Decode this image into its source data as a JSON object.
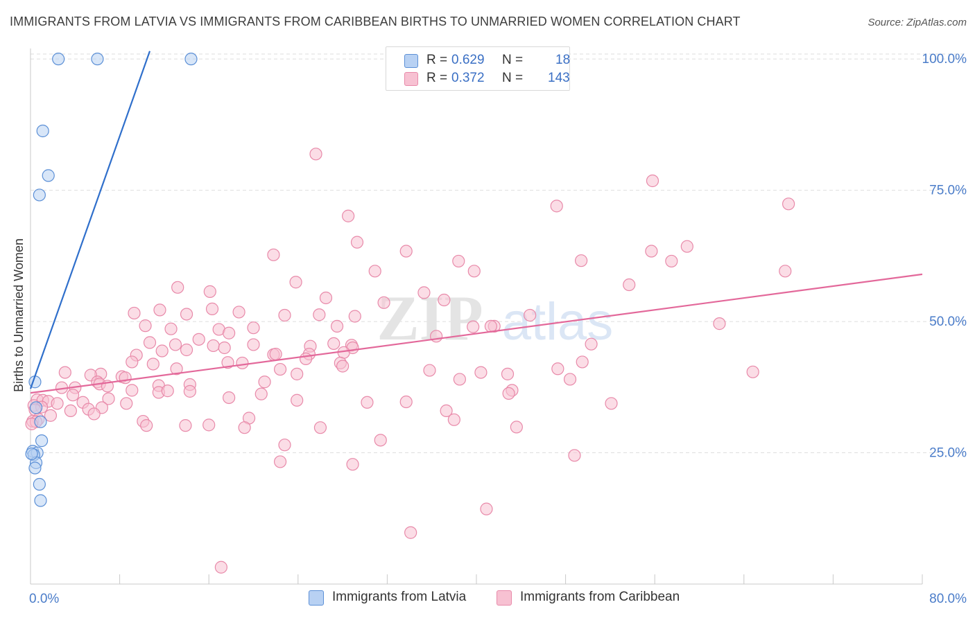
{
  "title": "IMMIGRANTS FROM LATVIA VS IMMIGRANTS FROM CARIBBEAN BIRTHS TO UNMARRIED WOMEN CORRELATION CHART",
  "source": "Source: ZipAtlas.com",
  "watermark": {
    "zip": "ZIP",
    "atlas": "atlas"
  },
  "legend_stats": [
    {
      "r_label": "R =",
      "r_value": "0.629",
      "n_label": "N =",
      "n_value": "18"
    },
    {
      "r_label": "R =",
      "r_value": "0.372",
      "n_label": "N =",
      "n_value": "143"
    }
  ],
  "colors": {
    "latvia_fill": "#b8d1f3",
    "latvia_stroke": "#5b8fd6",
    "latvia_line": "#2f6fcb",
    "caribbean_fill": "#f7c1d2",
    "caribbean_stroke": "#e889a9",
    "caribbean_line": "#e3689a",
    "tick_label": "#4a7cc9",
    "grid": "#dedede"
  },
  "chart_data": {
    "type": "scatter",
    "title": "IMMIGRANTS FROM LATVIA VS IMMIGRANTS FROM CARIBBEAN BIRTHS TO UNMARRIED WOMEN CORRELATION CHART",
    "xlabel": "",
    "ylabel": "Births to Unmarried Women",
    "xlim": [
      0,
      80
    ],
    "ylim": [
      0,
      102
    ],
    "x_tick_labels": [
      {
        "value": 0,
        "label": "0.0%"
      },
      {
        "value": 80,
        "label": "80.0%"
      }
    ],
    "x_minor_ticks": [
      0,
      8,
      16,
      24,
      32,
      40,
      48,
      56,
      64,
      72,
      80
    ],
    "y_tick_labels": [
      {
        "value": 25,
        "label": "25.0%"
      },
      {
        "value": 50,
        "label": "50.0%"
      },
      {
        "value": 75,
        "label": "75.0%"
      },
      {
        "value": 100,
        "label": "100.0%"
      }
    ],
    "series": [
      {
        "name": "Immigrants from Latvia",
        "r": 0.629,
        "n": 18,
        "trend": {
          "x0": 0,
          "y0": 37.2,
          "x1": 10.7,
          "y1": 101.5
        },
        "points": [
          [
            2.5,
            100
          ],
          [
            6.0,
            100
          ],
          [
            14.4,
            100
          ],
          [
            1.1,
            86.3
          ],
          [
            1.6,
            77.8
          ],
          [
            0.8,
            74.1
          ],
          [
            0.4,
            38.5
          ],
          [
            0.5,
            33.6
          ],
          [
            0.9,
            30.9
          ],
          [
            1.0,
            27.3
          ],
          [
            0.2,
            25.3
          ],
          [
            0.6,
            25.0
          ],
          [
            0.3,
            24.6
          ],
          [
            0.5,
            23.1
          ],
          [
            0.4,
            22.1
          ],
          [
            0.8,
            19.0
          ],
          [
            0.9,
            15.9
          ],
          [
            0.1,
            24.8
          ]
        ]
      },
      {
        "name": "Immigrants from Caribbean",
        "r": 0.372,
        "n": 143,
        "trend": {
          "x0": 0,
          "y0": 36.4,
          "x1": 80,
          "y1": 59.0
        },
        "points": [
          [
            25.6,
            81.9
          ],
          [
            55.8,
            76.8
          ],
          [
            68.0,
            72.4
          ],
          [
            47.2,
            72.0
          ],
          [
            28.5,
            70.1
          ],
          [
            29.3,
            65.1
          ],
          [
            58.9,
            64.3
          ],
          [
            55.7,
            63.4
          ],
          [
            33.7,
            63.4
          ],
          [
            21.8,
            62.7
          ],
          [
            49.4,
            61.6
          ],
          [
            38.4,
            61.5
          ],
          [
            57.5,
            61.5
          ],
          [
            39.8,
            59.6
          ],
          [
            30.9,
            59.6
          ],
          [
            67.7,
            59.6
          ],
          [
            23.8,
            57.5
          ],
          [
            53.7,
            57.0
          ],
          [
            13.2,
            56.5
          ],
          [
            16.1,
            55.7
          ],
          [
            35.3,
            55.5
          ],
          [
            26.5,
            54.5
          ],
          [
            37.1,
            54.1
          ],
          [
            31.7,
            53.6
          ],
          [
            16.3,
            52.4
          ],
          [
            11.6,
            52.2
          ],
          [
            9.3,
            51.6
          ],
          [
            14.0,
            51.4
          ],
          [
            18.7,
            51.8
          ],
          [
            25.9,
            51.3
          ],
          [
            29.1,
            51.0
          ],
          [
            22.8,
            51.2
          ],
          [
            44.8,
            51.2
          ],
          [
            61.8,
            49.6
          ],
          [
            41.6,
            49.1
          ],
          [
            10.3,
            49.2
          ],
          [
            27.5,
            49.1
          ],
          [
            39.7,
            49.0
          ],
          [
            41.3,
            49.1
          ],
          [
            16.9,
            48.5
          ],
          [
            12.6,
            48.6
          ],
          [
            20.0,
            48.8
          ],
          [
            17.8,
            47.8
          ],
          [
            36.4,
            47.2
          ],
          [
            15.1,
            46.6
          ],
          [
            10.7,
            46.0
          ],
          [
            27.2,
            45.8
          ],
          [
            28.8,
            45.5
          ],
          [
            20.0,
            45.6
          ],
          [
            16.4,
            45.4
          ],
          [
            25.1,
            45.3
          ],
          [
            13.0,
            45.6
          ],
          [
            17.4,
            45.0
          ],
          [
            28.9,
            45.0
          ],
          [
            11.8,
            44.4
          ],
          [
            50.3,
            45.7
          ],
          [
            14.0,
            44.6
          ],
          [
            25.0,
            43.8
          ],
          [
            21.8,
            43.7
          ],
          [
            28.1,
            44.1
          ],
          [
            9.5,
            43.6
          ],
          [
            22.0,
            43.8
          ],
          [
            24.7,
            42.9
          ],
          [
            9.1,
            42.3
          ],
          [
            17.7,
            42.2
          ],
          [
            19.0,
            42.1
          ],
          [
            27.8,
            42.1
          ],
          [
            28.0,
            41.5
          ],
          [
            49.5,
            42.3
          ],
          [
            11.0,
            41.9
          ],
          [
            13.1,
            41.0
          ],
          [
            47.3,
            41.0
          ],
          [
            64.8,
            40.4
          ],
          [
            22.4,
            40.9
          ],
          [
            35.8,
            40.7
          ],
          [
            6.3,
            40.0
          ],
          [
            3.1,
            40.3
          ],
          [
            40.4,
            40.3
          ],
          [
            5.4,
            39.8
          ],
          [
            23.9,
            40.0
          ],
          [
            42.8,
            40.0
          ],
          [
            8.2,
            39.5
          ],
          [
            8.5,
            39.3
          ],
          [
            38.5,
            39.0
          ],
          [
            48.4,
            39.0
          ],
          [
            21.0,
            38.5
          ],
          [
            6.0,
            38.5
          ],
          [
            14.3,
            38.0
          ],
          [
            11.5,
            37.8
          ],
          [
            6.2,
            38.1
          ],
          [
            6.9,
            37.7
          ],
          [
            2.8,
            37.4
          ],
          [
            4.0,
            37.4
          ],
          [
            43.2,
            36.9
          ],
          [
            14.3,
            36.7
          ],
          [
            11.5,
            36.5
          ],
          [
            12.3,
            36.8
          ],
          [
            9.1,
            36.9
          ],
          [
            20.7,
            36.2
          ],
          [
            42.9,
            36.3
          ],
          [
            3.8,
            36.0
          ],
          [
            7.0,
            35.3
          ],
          [
            17.8,
            35.5
          ],
          [
            0.6,
            35.1
          ],
          [
            1.1,
            35.0
          ],
          [
            1.6,
            34.8
          ],
          [
            4.7,
            34.6
          ],
          [
            2.4,
            34.4
          ],
          [
            23.9,
            35.0
          ],
          [
            30.2,
            34.6
          ],
          [
            33.7,
            34.7
          ],
          [
            52.1,
            34.4
          ],
          [
            8.6,
            34.4
          ],
          [
            0.3,
            34.0
          ],
          [
            1.0,
            33.7
          ],
          [
            6.4,
            33.6
          ],
          [
            0.4,
            33.2
          ],
          [
            3.6,
            33.0
          ],
          [
            37.3,
            33.0
          ],
          [
            5.2,
            33.3
          ],
          [
            1.8,
            32.1
          ],
          [
            5.7,
            32.4
          ],
          [
            0.7,
            31.4
          ],
          [
            19.6,
            31.6
          ],
          [
            0.2,
            31.0
          ],
          [
            0.5,
            30.9
          ],
          [
            38.0,
            31.3
          ],
          [
            10.1,
            31.0
          ],
          [
            10.4,
            30.2
          ],
          [
            16.0,
            30.3
          ],
          [
            13.9,
            30.2
          ],
          [
            0.1,
            30.5
          ],
          [
            26.0,
            29.8
          ],
          [
            19.2,
            29.8
          ],
          [
            43.6,
            29.9
          ],
          [
            31.4,
            27.4
          ],
          [
            22.8,
            26.5
          ],
          [
            48.8,
            24.5
          ],
          [
            22.4,
            23.3
          ],
          [
            28.9,
            22.8
          ],
          [
            40.9,
            14.3
          ],
          [
            34.1,
            9.8
          ],
          [
            17.1,
            3.2
          ]
        ]
      }
    ],
    "legend": [
      {
        "label": "Immigrants from Latvia"
      },
      {
        "label": "Immigrants from Caribbean"
      }
    ]
  }
}
